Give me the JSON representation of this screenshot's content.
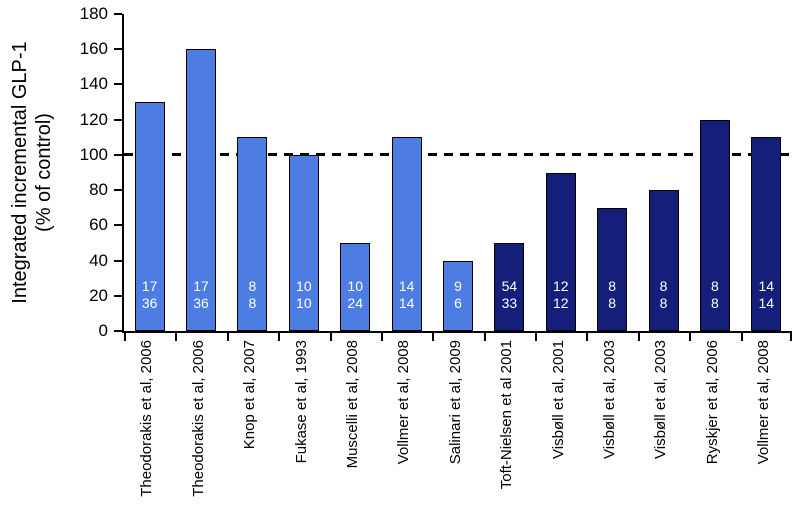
{
  "y_axis_title": {
    "line1": "Integrated incremental GLP-1",
    "line2": "(% of control)"
  },
  "chart_data": {
    "type": "bar",
    "title": "",
    "xlabel": "",
    "ylabel": "Integrated incremental GLP-1 (% of control)",
    "ylim": [
      0,
      180
    ],
    "ytick_step": 20,
    "yticks": [
      0,
      20,
      40,
      60,
      80,
      100,
      120,
      140,
      160,
      180
    ],
    "grid": false,
    "legend_position": "none",
    "reference_line": {
      "value": 100,
      "style": "dashed",
      "color": "#000000"
    },
    "bar_colors": {
      "light_blue": "#4d7ce2",
      "dark_blue": "#141f7a"
    },
    "bar_outline_color": "#000000",
    "bars": [
      {
        "label": "Theodorakis et al, 2006",
        "value": 130,
        "color_group": "light_blue",
        "inbar_top": "17",
        "inbar_bottom": "36"
      },
      {
        "label": "Theodorakis et al, 2006",
        "value": 160,
        "color_group": "light_blue",
        "inbar_top": "17",
        "inbar_bottom": "36"
      },
      {
        "label": "Knop et al, 2007",
        "value": 110,
        "color_group": "light_blue",
        "inbar_top": "8",
        "inbar_bottom": "8"
      },
      {
        "label": "Fukase et al, 1993",
        "value": 100,
        "color_group": "light_blue",
        "inbar_top": "10",
        "inbar_bottom": "10"
      },
      {
        "label": "Muscelli et al, 2008",
        "value": 50,
        "color_group": "light_blue",
        "inbar_top": "10",
        "inbar_bottom": "24"
      },
      {
        "label": "Vollmer et al, 2008",
        "value": 110,
        "color_group": "light_blue",
        "inbar_top": "14",
        "inbar_bottom": "14"
      },
      {
        "label": "Salinari et al, 2009",
        "value": 40,
        "color_group": "light_blue",
        "inbar_top": "9",
        "inbar_bottom": "6"
      },
      {
        "label": "Toft-Nielsen et al 2001",
        "value": 50,
        "color_group": "dark_blue",
        "inbar_top": "54",
        "inbar_bottom": "33"
      },
      {
        "label": "Visbøll et al, 2001",
        "value": 90,
        "color_group": "dark_blue",
        "inbar_top": "12",
        "inbar_bottom": "12"
      },
      {
        "label": "Visbøll et al, 2003",
        "value": 70,
        "color_group": "dark_blue",
        "inbar_top": "8",
        "inbar_bottom": "8"
      },
      {
        "label": "Visbøll et al, 2003",
        "value": 80,
        "color_group": "dark_blue",
        "inbar_top": "8",
        "inbar_bottom": "8"
      },
      {
        "label": "Ryskjer et al, 2006",
        "value": 120,
        "color_group": "dark_blue",
        "inbar_top": "8",
        "inbar_bottom": "8"
      },
      {
        "label": "Vollmer et al, 2008",
        "value": 110,
        "color_group": "dark_blue",
        "inbar_top": "14",
        "inbar_bottom": "14"
      }
    ]
  }
}
